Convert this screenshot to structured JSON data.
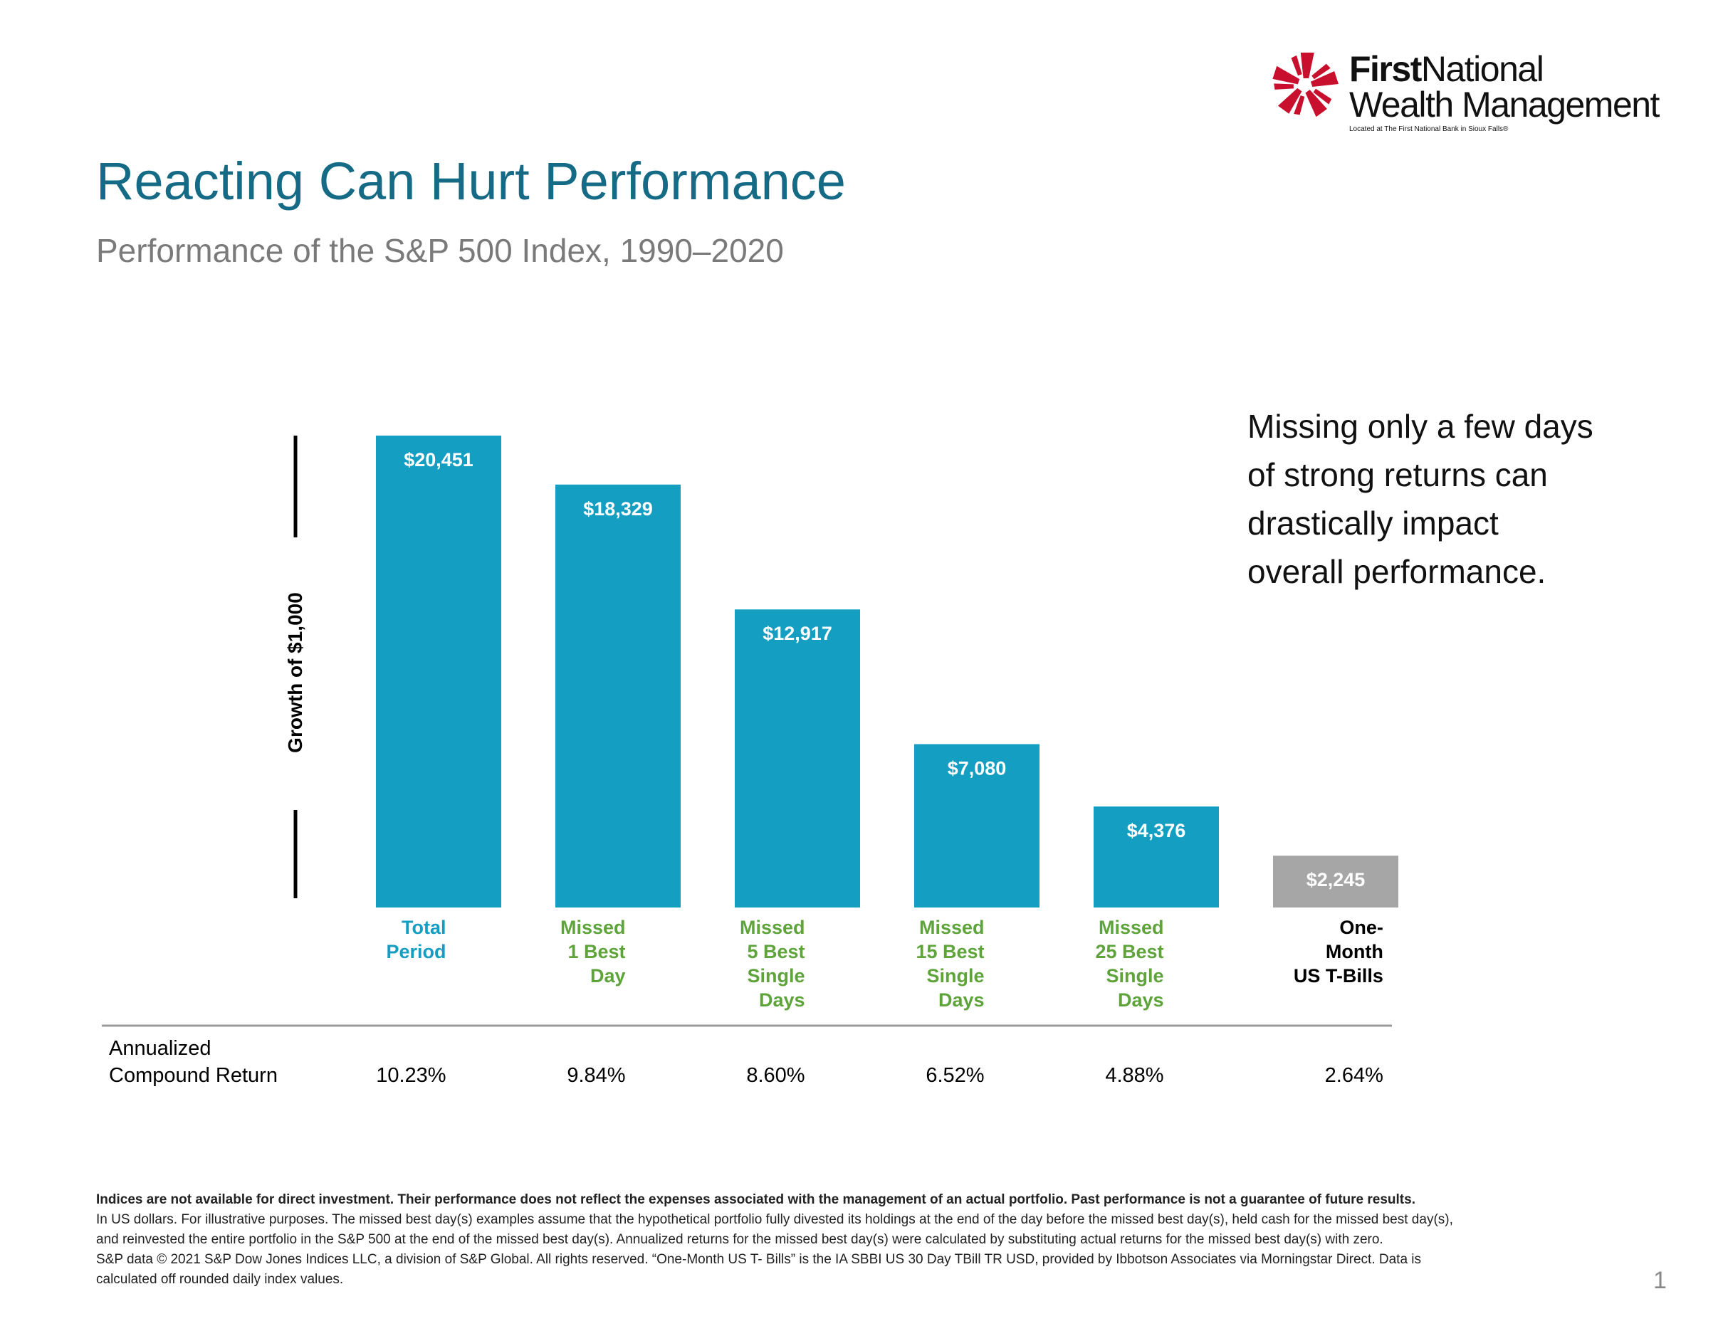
{
  "logo": {
    "first": "First",
    "national": "National",
    "line2": "Wealth Management",
    "tagline": "Located at The First National Bank in Sioux Falls®"
  },
  "title": "Reacting Can Hurt Performance",
  "subtitle": "Performance of the S&P 500 Index, 1990–2020",
  "note_lines": [
    "Missing only a few days",
    "of strong returns can",
    "drastically impact",
    "overall performance."
  ],
  "colors": {
    "bar": "#139ec2",
    "tbill_bar": "#a6a6a6",
    "green_label": "#5ea43a",
    "blue_label": "#139ec2",
    "title": "#156b86"
  },
  "chart_data": {
    "type": "bar",
    "ylabel": "Growth of $1,000",
    "categories": [
      [
        "Total",
        "Period"
      ],
      [
        "Missed",
        "1 Best",
        "Day"
      ],
      [
        "Missed",
        "5 Best",
        "Single",
        "Days"
      ],
      [
        "Missed",
        "15 Best",
        "Single",
        "Days"
      ],
      [
        "Missed",
        "25 Best",
        "Single",
        "Days"
      ],
      [
        "One-",
        "Month",
        "US T-Bills"
      ]
    ],
    "values": [
      20451,
      18329,
      12917,
      7080,
      4376,
      2245
    ],
    "value_labels": [
      "$20,451",
      "$18,329",
      "$12,917",
      "$7,080",
      "$4,376",
      "$2,245"
    ],
    "ylim": [
      0,
      20451
    ],
    "grid": false,
    "legend": "none"
  },
  "returns_row": {
    "label_line1": "Annualized",
    "label_line2": "Compound Return",
    "values": [
      "10.23%",
      "9.84%",
      "8.60%",
      "6.52%",
      "4.88%",
      "2.64%"
    ]
  },
  "footnotes": {
    "bold": "Indices are not available for direct investment. Their performance does not reflect the expenses associated with the management of an actual portfolio. Past performance is not a guarantee of future results.",
    "line2": "In US dollars. For illustrative purposes. The missed best day(s) examples assume that the hypothetical portfolio fully divested its holdings at the end of the day before the missed best day(s), held cash for the missed best day(s),",
    "line3": "and reinvested the entire portfolio in the S&P 500 at the end of the missed best day(s). Annualized returns for the missed best day(s) were calculated by substituting actual returns for the missed best day(s) with zero.",
    "line4": "S&P data © 2021 S&P Dow Jones Indices LLC, a division of S&P Global. All rights reserved. “One-Month US T- Bills” is the IA SBBI US 30 Day TBill TR USD, provided by Ibbotson Associates via Morningstar Direct. Data is",
    "line5": "calculated off rounded daily index values."
  },
  "page_number": "1"
}
